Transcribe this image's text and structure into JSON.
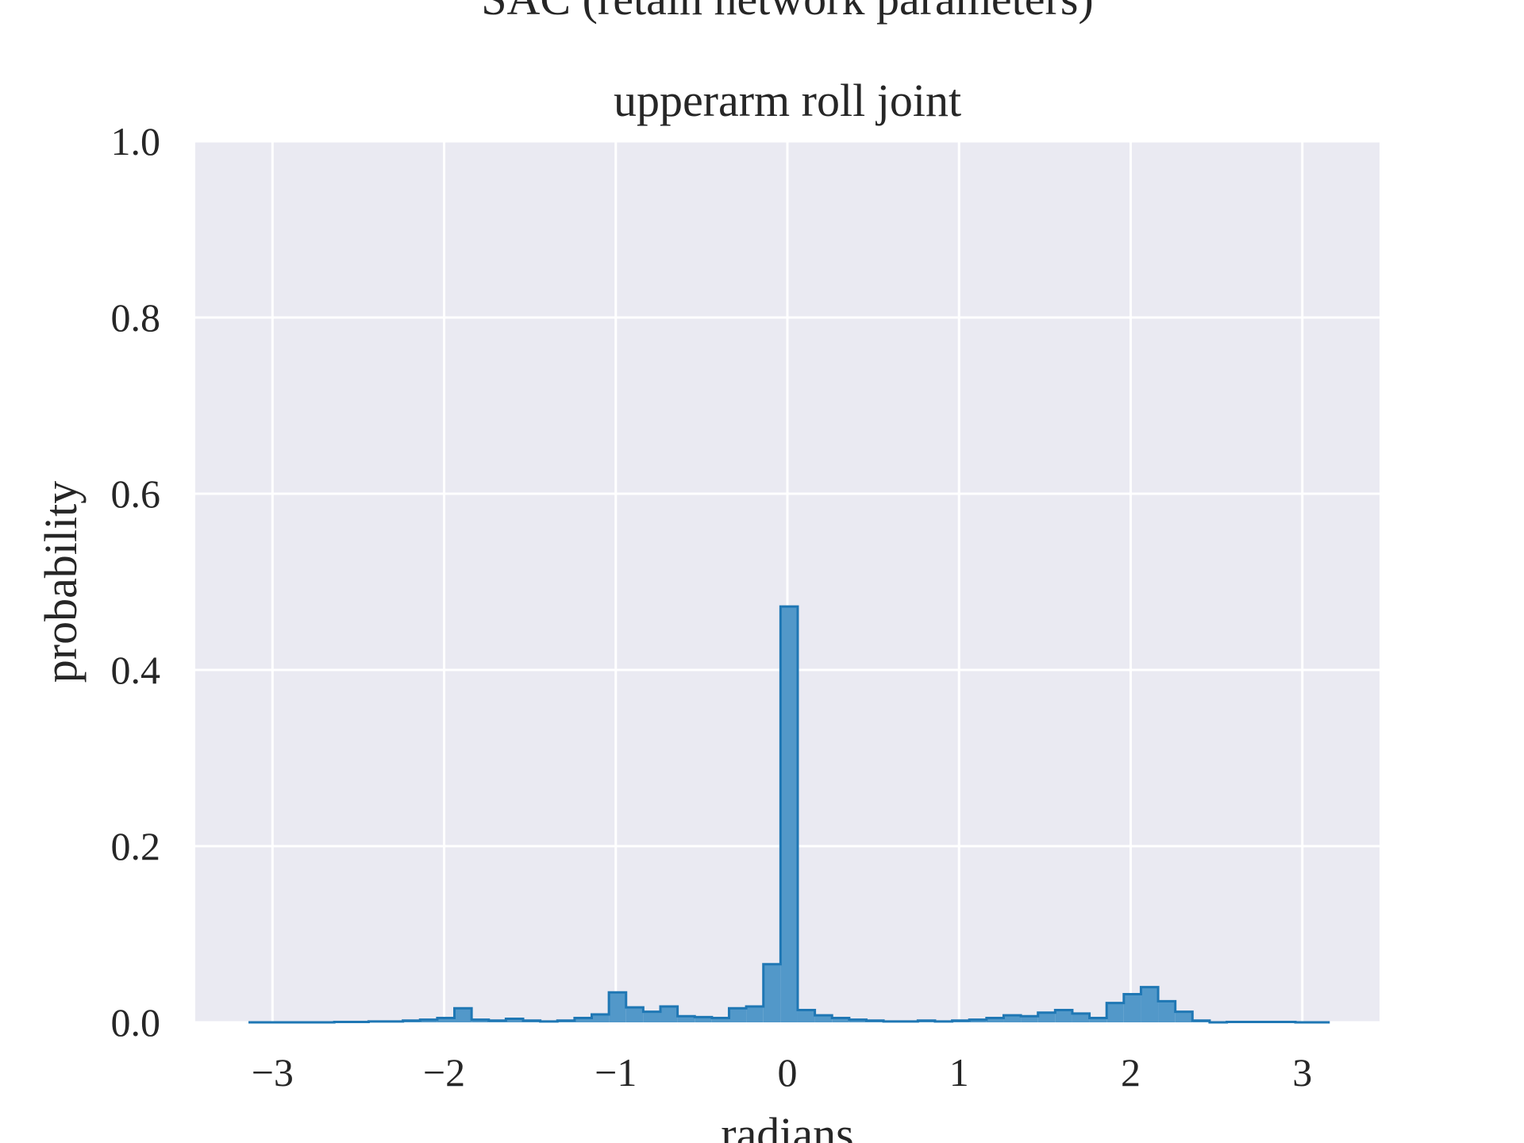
{
  "chart_data": {
    "type": "bar",
    "suptitle": "SAC (retain network parameters)",
    "title": "upperarm roll joint",
    "xlabel": "radians",
    "ylabel": "probability",
    "xlim": [
      -3.45,
      3.45
    ],
    "ylim": [
      0.0,
      1.0
    ],
    "xticks": [
      -3,
      -2,
      -1,
      0,
      1,
      2,
      3
    ],
    "xtick_labels": [
      "−3",
      "−2",
      "−1",
      "0",
      "1",
      "2",
      "3"
    ],
    "yticks": [
      0.0,
      0.2,
      0.4,
      0.6,
      0.8,
      1.0
    ],
    "ytick_labels": [
      "0.0",
      "0.2",
      "0.4",
      "0.6",
      "0.8",
      "1.0"
    ],
    "grid": true,
    "colors": {
      "plot_background": "#eaeaf2",
      "grid": "#ffffff",
      "bar_fill": "#5298c9",
      "bar_edge": "#1f77b4"
    },
    "bin_edges": [
      -3.14,
      -3.04,
      -2.94,
      -2.84,
      -2.74,
      -2.64,
      -2.54,
      -2.44,
      -2.34,
      -2.24,
      -2.14,
      -2.04,
      -1.94,
      -1.84,
      -1.74,
      -1.64,
      -1.54,
      -1.44,
      -1.34,
      -1.24,
      -1.14,
      -1.04,
      -0.94,
      -0.84,
      -0.74,
      -0.64,
      -0.54,
      -0.44,
      -0.34,
      -0.24,
      -0.14,
      -0.04,
      0.06,
      0.16,
      0.26,
      0.36,
      0.46,
      0.56,
      0.66,
      0.76,
      0.86,
      0.96,
      1.06,
      1.16,
      1.26,
      1.36,
      1.46,
      1.56,
      1.66,
      1.76,
      1.86,
      1.96,
      2.06,
      2.16,
      2.26,
      2.36,
      2.46,
      2.56,
      2.66,
      2.76,
      2.86,
      2.96,
      3.06,
      3.16
    ],
    "values": [
      0.0,
      0.0,
      0.0,
      0.0,
      0.0,
      0.0005,
      0.0005,
      0.001,
      0.001,
      0.002,
      0.003,
      0.005,
      0.016,
      0.003,
      0.002,
      0.004,
      0.002,
      0.001,
      0.002,
      0.005,
      0.009,
      0.034,
      0.017,
      0.012,
      0.018,
      0.007,
      0.006,
      0.005,
      0.016,
      0.018,
      0.066,
      0.472,
      0.014,
      0.008,
      0.005,
      0.003,
      0.002,
      0.001,
      0.001,
      0.002,
      0.001,
      0.002,
      0.003,
      0.005,
      0.008,
      0.007,
      0.011,
      0.014,
      0.01,
      0.005,
      0.022,
      0.032,
      0.04,
      0.024,
      0.012,
      0.002,
      0.0,
      0.0005,
      0.0005,
      0.0005,
      0.0005,
      0.0,
      0.0
    ]
  }
}
